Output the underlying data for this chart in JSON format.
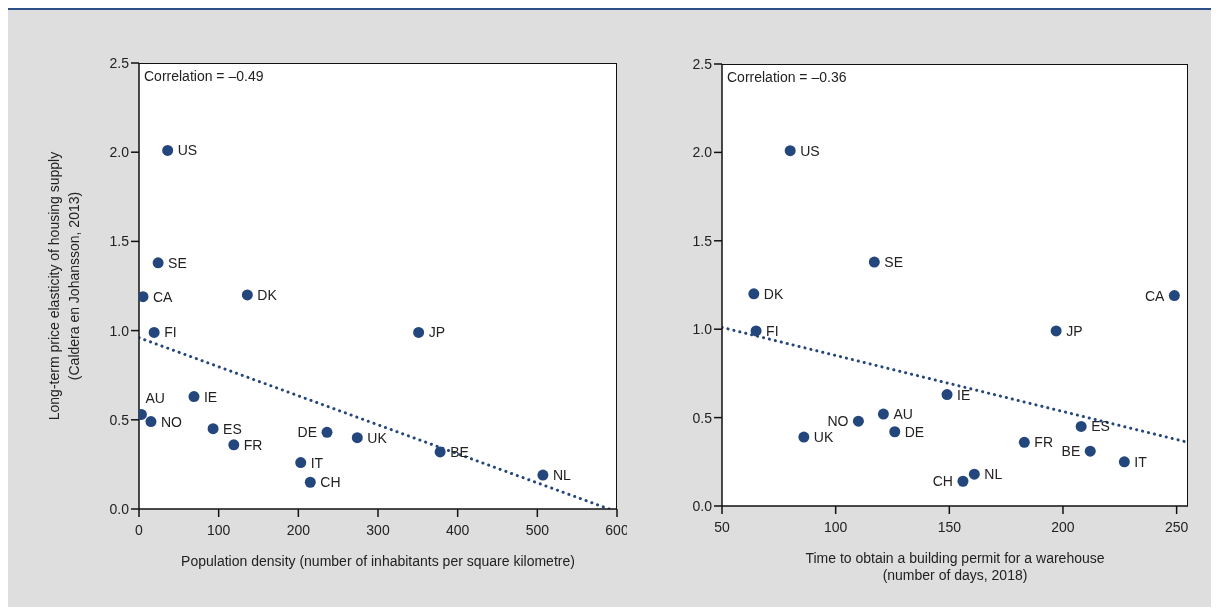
{
  "chart_data": [
    {
      "type": "scatter",
      "xlabel": "Population density (number of inhabitants per square kilometre)",
      "ylabel": "Long-term price elasticity of housing supply\n(Caldera en Johansson, 2013)",
      "xlim": [
        0,
        600
      ],
      "xticks": [
        0,
        100,
        200,
        300,
        400,
        500,
        600
      ],
      "ylim": [
        0,
        2.5
      ],
      "yticks": [
        {
          "value": 0,
          "label": "0.0"
        },
        {
          "value": 0.5,
          "label": "0.5"
        },
        {
          "value": 1,
          "label": "1.0"
        },
        {
          "value": 1.5,
          "label": "1.5"
        },
        {
          "value": 2,
          "label": "2.0"
        },
        {
          "value": 2.5,
          "label": "2.5"
        }
      ],
      "series": [
        {
          "marker": "circle",
          "color": "#23467c",
          "x": [
            36,
            24,
            5,
            136,
            19,
            351,
            3,
            15,
            69,
            93,
            119,
            236,
            274,
            203,
            215,
            378,
            507
          ],
          "values": [
            2.01,
            1.38,
            1.19,
            1.2,
            0.99,
            0.99,
            0.53,
            0.49,
            0.63,
            0.45,
            0.36,
            0.43,
            0.4,
            0.26,
            0.15,
            0.32,
            0.19
          ]
        },
        {
          "type": "line",
          "color": "#23467c",
          "line_style": "dotted",
          "x": [
            0,
            590
          ],
          "values": [
            0.96,
            0
          ]
        }
      ],
      "annotations": [
        "Correlation = –0.49",
        {
          "text": "US",
          "x": 36,
          "y": 2.01
        },
        {
          "text": "SE",
          "x": 24,
          "y": 1.38
        },
        {
          "text": "CA",
          "x": 5,
          "y": 1.19
        },
        {
          "text": "DK",
          "x": 136,
          "y": 1.2
        },
        {
          "text": "FI",
          "x": 19,
          "y": 0.99
        },
        {
          "text": "JP",
          "x": 351,
          "y": 0.99
        },
        {
          "text": "AU",
          "x": 3,
          "y": 0.53
        },
        {
          "text": "NO",
          "x": 15,
          "y": 0.49
        },
        {
          "text": "IE",
          "x": 69,
          "y": 0.63
        },
        {
          "text": "ES",
          "x": 93,
          "y": 0.45
        },
        {
          "text": "FR",
          "x": 119,
          "y": 0.36
        },
        {
          "text": "DE",
          "x": 236,
          "y": 0.43
        },
        {
          "text": "UK",
          "x": 274,
          "y": 0.4
        },
        {
          "text": "IT",
          "x": 203,
          "y": 0.26
        },
        {
          "text": "CH",
          "x": 215,
          "y": 0.15
        },
        {
          "text": "BE",
          "x": 378,
          "y": 0.32
        },
        {
          "text": "NL",
          "x": 507,
          "y": 0.19
        }
      ]
    },
    {
      "type": "scatter",
      "xlabel": "Time to obtain a building permit for a warehouse\n(number of days, 2018)",
      "xlim": [
        50,
        255
      ],
      "xticks": [
        50,
        100,
        150,
        200,
        250
      ],
      "ylim": [
        0,
        2.5
      ],
      "yticks": [
        {
          "value": 0,
          "label": "0.0"
        },
        {
          "value": 0.5,
          "label": "0.5"
        },
        {
          "value": 1,
          "label": "1.0"
        },
        {
          "value": 1.5,
          "label": "1.5"
        },
        {
          "value": 2,
          "label": "2.0"
        },
        {
          "value": 2.5,
          "label": "2.5"
        }
      ],
      "series": [
        {
          "marker": "circle",
          "color": "#23467c",
          "x": [
            80,
            117,
            64,
            65,
            249,
            197,
            149,
            121,
            110,
            126,
            86,
            183,
            208,
            212,
            227,
            161,
            156
          ],
          "values": [
            2.01,
            1.38,
            1.2,
            0.99,
            1.19,
            0.99,
            0.63,
            0.52,
            0.48,
            0.42,
            0.39,
            0.36,
            0.45,
            0.31,
            0.25,
            0.18,
            0.14
          ]
        },
        {
          "type": "line",
          "color": "#23467c",
          "line_style": "dotted",
          "x": [
            50,
            255
          ],
          "values": [
            1.01,
            0.36
          ]
        }
      ],
      "annotations": [
        "Correlation = –0.36",
        {
          "text": "US",
          "x": 80,
          "y": 2.01
        },
        {
          "text": "SE",
          "x": 117,
          "y": 1.38
        },
        {
          "text": "DK",
          "x": 64,
          "y": 1.2
        },
        {
          "text": "FI",
          "x": 65,
          "y": 0.99
        },
        {
          "text": "CA",
          "x": 249,
          "y": 1.19
        },
        {
          "text": "JP",
          "x": 197,
          "y": 0.99
        },
        {
          "text": "IE",
          "x": 149,
          "y": 0.63
        },
        {
          "text": "AU",
          "x": 121,
          "y": 0.52
        },
        {
          "text": "NO",
          "x": 110,
          "y": 0.48
        },
        {
          "text": "DE",
          "x": 126,
          "y": 0.42
        },
        {
          "text": "UK",
          "x": 86,
          "y": 0.39
        },
        {
          "text": "FR",
          "x": 183,
          "y": 0.36
        },
        {
          "text": "ES",
          "x": 208,
          "y": 0.45
        },
        {
          "text": "BE",
          "x": 212,
          "y": 0.31
        },
        {
          "text": "IT",
          "x": 227,
          "y": 0.25
        },
        {
          "text": "NL",
          "x": 161,
          "y": 0.18
        },
        {
          "text": "CH",
          "x": 156,
          "y": 0.14
        }
      ]
    }
  ]
}
